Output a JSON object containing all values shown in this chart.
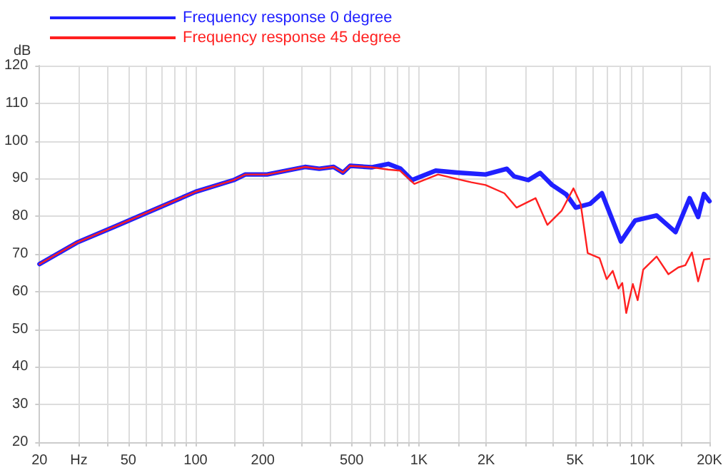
{
  "chart_data": {
    "type": "line",
    "log": "x",
    "grid": true,
    "legend": "top left",
    "marker": "none",
    "line_style": "solid",
    "ylabel": "dB",
    "xlim": [
      20,
      20000
    ],
    "ylim": [
      20,
      120
    ],
    "xticks": [
      20,
      {
        "value": 30,
        "label": "Hz"
      },
      {
        "value": 40,
        "label": null
      },
      50,
      {
        "value": 60,
        "label": null
      },
      {
        "value": 70,
        "label": null
      },
      {
        "value": 80,
        "label": null
      },
      {
        "value": 90,
        "label": null
      },
      100,
      {
        "value": 150,
        "label": null
      },
      200,
      {
        "value": 300,
        "label": null
      },
      {
        "value": 400,
        "label": null
      },
      500,
      {
        "value": 600,
        "label": null
      },
      {
        "value": 700,
        "label": null
      },
      {
        "value": 800,
        "label": null
      },
      {
        "value": 900,
        "label": null
      },
      {
        "value": 1000,
        "label": "1K"
      },
      {
        "value": 1500,
        "label": null
      },
      {
        "value": 2000,
        "label": "2K"
      },
      {
        "value": 3000,
        "label": null
      },
      {
        "value": 4000,
        "label": null
      },
      {
        "value": 5000,
        "label": "5K"
      },
      {
        "value": 6000,
        "label": null
      },
      {
        "value": 7000,
        "label": null
      },
      {
        "value": 8000,
        "label": null
      },
      {
        "value": 9000,
        "label": null
      },
      {
        "value": 10000,
        "label": "10K"
      },
      {
        "value": 15000,
        "label": null
      },
      {
        "value": 20000,
        "label": "20K"
      }
    ],
    "yticks": [
      20,
      30,
      40,
      50,
      60,
      70,
      80,
      90,
      100,
      110,
      120
    ],
    "series": [
      {
        "name": "Frequency response 0 degree",
        "color": "#2020ff",
        "x": [
          20,
          29.4,
          43.6,
          71,
          100,
          148,
          167,
          209,
          254,
          309,
          358,
          415,
          457,
          492,
          614,
          729,
          824,
          931,
          1189,
          1483,
          1988,
          2477,
          2667,
          3090,
          3490,
          3950,
          4570,
          5040,
          5840,
          6600,
          8030,
          9300,
          11600,
          14100,
          16300,
          17800,
          18900,
          20000
        ],
        "values": [
          67.3,
          73.0,
          77.3,
          82.7,
          86.5,
          89.6,
          91.1,
          91.1,
          92.1,
          93.1,
          92.6,
          93.1,
          91.6,
          93.4,
          93.0,
          93.9,
          92.7,
          89.6,
          92.1,
          91.6,
          91.1,
          92.6,
          90.6,
          89.6,
          91.5,
          88.3,
          85.8,
          82.3,
          83.3,
          86.1,
          73.3,
          78.9,
          80.2,
          75.8,
          84.8,
          79.8,
          85.9,
          84.0
        ]
      },
      {
        "name": "Frequency response 45 degree",
        "color": "#ff2020",
        "x": [
          20,
          29.4,
          43.6,
          71,
          100,
          148,
          167,
          209,
          254,
          309,
          358,
          415,
          457,
          492,
          614,
          729,
          824,
          954,
          1218,
          1718,
          1988,
          2415,
          2735,
          3330,
          3760,
          4360,
          4920,
          5300,
          5700,
          6440,
          6930,
          7380,
          7830,
          8140,
          8480,
          9080,
          9540,
          10100,
          11600,
          13100,
          14500,
          15600,
          16700,
          17800,
          18900,
          20000
        ],
        "values": [
          67.3,
          73.0,
          77.3,
          82.7,
          86.5,
          89.6,
          91.1,
          91.1,
          92.1,
          93.1,
          92.6,
          93.1,
          91.6,
          93.4,
          93.0,
          92.4,
          92.1,
          88.6,
          91.1,
          89.0,
          88.3,
          86.1,
          82.3,
          84.8,
          77.7,
          81.5,
          87.4,
          83.3,
          70.2,
          68.9,
          63.3,
          65.5,
          60.8,
          62.3,
          54.3,
          62.0,
          57.7,
          65.8,
          69.3,
          64.6,
          66.4,
          67.0,
          70.4,
          62.7,
          68.5,
          68.7
        ]
      }
    ]
  }
}
